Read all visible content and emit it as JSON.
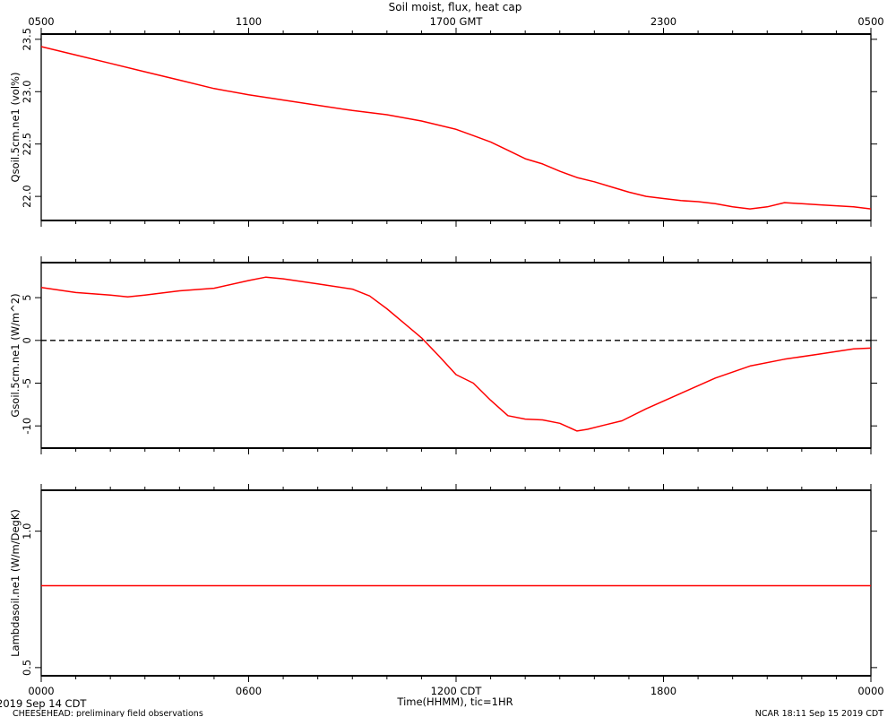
{
  "chart_data": {
    "title": "Soil moist, flux, heat cap",
    "top_axis_ticks": [
      "0500",
      "1100",
      "1700 GMT",
      "2300",
      "0500"
    ],
    "bottom_axis_ticks": [
      "0000",
      "0600",
      "1200 CDT",
      "1800",
      "0000"
    ],
    "xlabel": "Time(HHMM), tic=1HR",
    "date_left": "2019 Sep 14 CDT",
    "footer_left": "CHEESEHEAD: preliminary field observations",
    "footer_right": "NCAR 18:11 Sep 15 2019 CDT",
    "x_range_hours": [
      0,
      24
    ],
    "line_color": "#ff0000",
    "panels": [
      {
        "type": "line",
        "ylabel": "Qsoil.5cm.ne1 (vol%)",
        "ylim": [
          21.77,
          23.55
        ],
        "yticks": [
          22.0,
          22.5,
          23.0,
          23.5
        ],
        "ytick_labels": [
          "22.0",
          "22.5",
          "23.0",
          "23.5"
        ],
        "zero_line": false,
        "series": [
          {
            "x": [
              0,
              1,
              2,
              3,
              4,
              5,
              6,
              7,
              8,
              9,
              10,
              11,
              12,
              12.5,
              13,
              13.5,
              14,
              14.5,
              15,
              15.5,
              16,
              16.5,
              17,
              17.5,
              18,
              18.5,
              19,
              19.5,
              20,
              20.5,
              21,
              21.5,
              22,
              22.5,
              23,
              23.5,
              24
            ],
            "y": [
              23.43,
              23.35,
              23.27,
              23.19,
              23.11,
              23.03,
              22.97,
              22.92,
              22.87,
              22.82,
              22.78,
              22.72,
              22.64,
              22.58,
              22.52,
              22.44,
              22.36,
              22.31,
              22.24,
              22.18,
              22.14,
              22.09,
              22.04,
              22.0,
              21.98,
              21.96,
              21.95,
              21.93,
              21.9,
              21.88,
              21.9,
              21.94,
              21.93,
              21.92,
              21.91,
              21.9,
              21.88
            ]
          }
        ]
      },
      {
        "type": "line",
        "ylabel": "Gsoil.5cm.ne1 (W/m^2)",
        "ylim": [
          -12.6,
          9.1
        ],
        "yticks": [
          -10,
          -5,
          0,
          5
        ],
        "ytick_labels": [
          "-10",
          "-5",
          "0",
          "5"
        ],
        "zero_line": true,
        "series": [
          {
            "x": [
              0,
              1,
              2,
              2.5,
              3,
              4,
              5,
              6,
              6.5,
              7,
              8,
              9,
              9.5,
              10,
              10.5,
              11,
              11.5,
              12,
              12.5,
              13,
              13.5,
              14,
              14.5,
              15,
              15.5,
              15.8,
              16.3,
              16.8,
              17.5,
              18.5,
              19.5,
              20.5,
              21.5,
              22.5,
              23.5,
              24
            ],
            "y": [
              6.2,
              5.6,
              5.3,
              5.1,
              5.3,
              5.8,
              6.1,
              7.0,
              7.4,
              7.2,
              6.6,
              6.0,
              5.2,
              3.7,
              2.0,
              0.3,
              -1.8,
              -4.0,
              -5.0,
              -7.0,
              -8.8,
              -9.2,
              -9.3,
              -9.7,
              -10.6,
              -10.4,
              -9.9,
              -9.4,
              -8.0,
              -6.2,
              -4.4,
              -3.0,
              -2.2,
              -1.6,
              -1.0,
              -0.9
            ]
          }
        ]
      },
      {
        "type": "line",
        "ylabel": "Lambdasoil.ne1 (W/m/DegK)",
        "ylim": [
          0.47,
          1.15
        ],
        "yticks": [
          0.5,
          1.0
        ],
        "ytick_labels": [
          "0.5",
          "1.0"
        ],
        "zero_line": false,
        "series": [
          {
            "x": [
              0,
              24
            ],
            "y": [
              0.8,
              0.8
            ]
          }
        ]
      }
    ]
  }
}
